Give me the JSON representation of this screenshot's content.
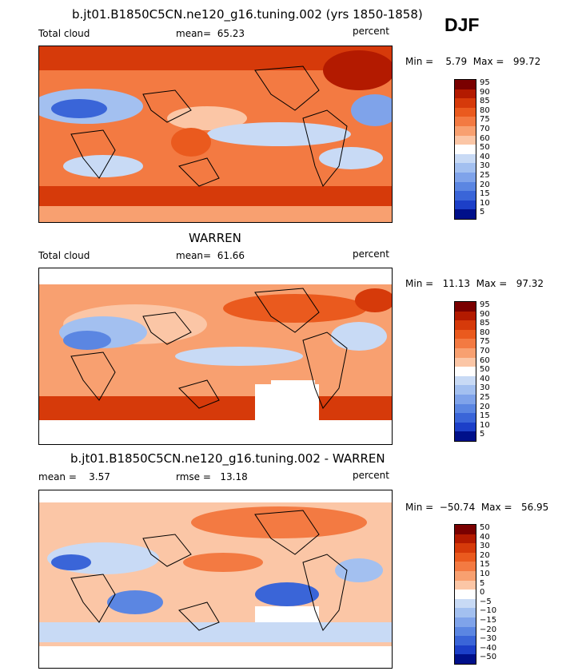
{
  "season": "DJF",
  "panels": [
    {
      "title": "b.jt01.B1850C5CN.ne120_g16.tuning.002 (yrs 1850-1858)",
      "left_label": "Total cloud",
      "center_label": "mean=  65.23",
      "right_label": "percent",
      "minmax": "Min =    5.79  Max =   99.72"
    },
    {
      "title": "WARREN",
      "left_label": "Total cloud",
      "center_label": "mean=  61.66",
      "right_label": "percent",
      "minmax": "Min =   11.13  Max =   97.32"
    },
    {
      "title": "b.jt01.B1850C5CN.ne120_g16.tuning.002 - WARREN",
      "left_label": "mean =    3.57",
      "center_label": "rmse =   13.18",
      "right_label": "percent",
      "minmax": "Min =  −50.74  Max =   56.95"
    }
  ],
  "colorbars": [
    {
      "levels": [
        "95",
        "90",
        "85",
        "80",
        "75",
        "70",
        "60",
        "50",
        "40",
        "30",
        "25",
        "20",
        "15",
        "10",
        "5"
      ],
      "colors": [
        "#7a0000",
        "#b31a00",
        "#d63a0a",
        "#ea5a1e",
        "#f37a42",
        "#f8a070",
        "#fbc6a6",
        "#ffffff",
        "#c8daf5",
        "#a3c0f0",
        "#7fa3ea",
        "#5b86e2",
        "#3a65d8",
        "#1c3fc8",
        "#00108a"
      ]
    },
    {
      "levels": [
        "95",
        "90",
        "85",
        "80",
        "75",
        "70",
        "60",
        "50",
        "40",
        "30",
        "25",
        "20",
        "15",
        "10",
        "5"
      ],
      "colors": [
        "#7a0000",
        "#b31a00",
        "#d63a0a",
        "#ea5a1e",
        "#f37a42",
        "#f8a070",
        "#fbc6a6",
        "#ffffff",
        "#c8daf5",
        "#a3c0f0",
        "#7fa3ea",
        "#5b86e2",
        "#3a65d8",
        "#1c3fc8",
        "#00108a"
      ]
    },
    {
      "levels": [
        "50",
        "40",
        "30",
        "20",
        "15",
        "10",
        "5",
        "0",
        "−5",
        "−10",
        "−15",
        "−20",
        "−30",
        "−40",
        "−50"
      ],
      "colors": [
        "#7a0000",
        "#b31a00",
        "#d63a0a",
        "#ea5a1e",
        "#f37a42",
        "#f8a070",
        "#fbc6a6",
        "#ffffff",
        "#c8daf5",
        "#a3c0f0",
        "#7fa3ea",
        "#5b86e2",
        "#3a65d8",
        "#1c3fc8",
        "#00108a"
      ]
    }
  ],
  "chart_data": [
    {
      "type": "heatmap",
      "title": "b.jt01.B1850C5CN.ne120_g16.tuning.002 (yrs 1850-1858)",
      "variable": "Total cloud",
      "units": "percent",
      "mean": 65.23,
      "min": 5.79,
      "max": 99.72,
      "contour_levels": [
        5,
        10,
        15,
        20,
        25,
        30,
        40,
        50,
        60,
        70,
        75,
        80,
        85,
        90,
        95
      ]
    },
    {
      "type": "heatmap",
      "title": "WARREN",
      "variable": "Total cloud",
      "units": "percent",
      "mean": 61.66,
      "min": 11.13,
      "max": 97.32,
      "contour_levels": [
        5,
        10,
        15,
        20,
        25,
        30,
        40,
        50,
        60,
        70,
        75,
        80,
        85,
        90,
        95
      ]
    },
    {
      "type": "heatmap",
      "title": "b.jt01.B1850C5CN.ne120_g16.tuning.002 - WARREN",
      "units": "percent",
      "mean": 3.57,
      "rmse": 13.18,
      "min": -50.74,
      "max": 56.95,
      "contour_levels": [
        -50,
        -40,
        -30,
        -20,
        -15,
        -10,
        -5,
        0,
        5,
        10,
        15,
        20,
        30,
        40,
        50
      ]
    }
  ]
}
